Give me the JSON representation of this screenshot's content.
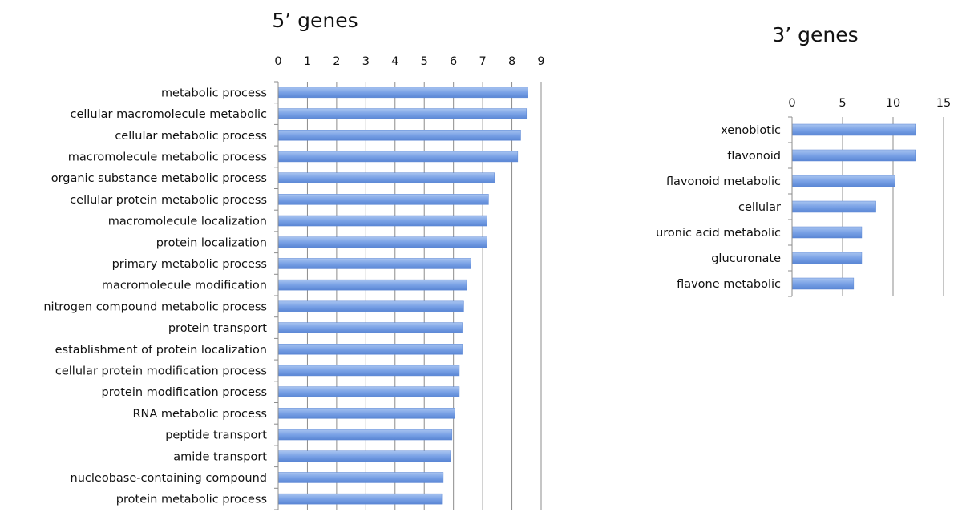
{
  "chart_data": [
    {
      "type": "bar",
      "orientation": "horizontal",
      "title": "5’ genes",
      "xlim": [
        0,
        9
      ],
      "ticks": [
        "0",
        "1",
        "2",
        "3",
        "4",
        "5",
        "6",
        "7",
        "8",
        "9"
      ],
      "grid": true,
      "categories": [
        "metabolic process",
        "cellular macromolecule metabolic",
        "cellular metabolic process",
        "macromolecule metabolic process",
        "organic substance metabolic process",
        "cellular protein metabolic process",
        "macromolecule localization",
        "protein localization",
        "primary metabolic process",
        "macromolecule modification",
        "nitrogen compound metabolic process",
        "protein transport",
        "establishment of protein localization",
        "cellular protein modification process",
        "protein modification process",
        "RNA metabolic process",
        "peptide transport",
        "amide transport",
        "nucleobase-containing compound",
        "protein metabolic process"
      ],
      "values": [
        8.55,
        8.5,
        8.3,
        8.2,
        7.4,
        7.2,
        7.15,
        7.15,
        6.6,
        6.45,
        6.35,
        6.3,
        6.3,
        6.2,
        6.2,
        6.05,
        5.95,
        5.9,
        5.65,
        5.6
      ],
      "bar_color": "#6f9ae0"
    },
    {
      "type": "bar",
      "orientation": "horizontal",
      "title": "3’ genes",
      "xlim": [
        0,
        15
      ],
      "ticks": [
        "0",
        "5",
        "10",
        "15"
      ],
      "grid": true,
      "categories": [
        "xenobiotic",
        "flavonoid",
        "flavonoid metabolic",
        "cellular",
        "uronic acid metabolic",
        "glucuronate",
        "flavone metabolic"
      ],
      "values": [
        12.2,
        12.2,
        10.2,
        8.3,
        6.9,
        6.9,
        6.1
      ],
      "bar_color": "#6f9ae0"
    }
  ]
}
